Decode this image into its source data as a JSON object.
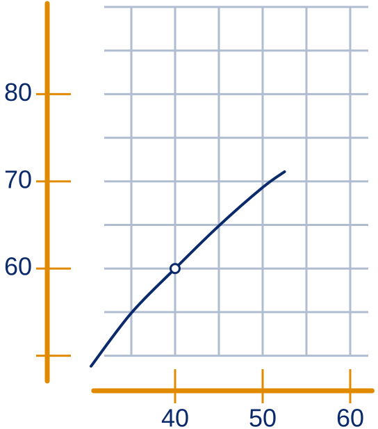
{
  "chart_data": {
    "type": "line",
    "series": [
      {
        "color": "#0b2a6b",
        "x": [
          30.4,
          35,
          40,
          45,
          50,
          52.5
        ],
        "values": [
          48.8,
          54.9,
          60,
          64.9,
          69.3,
          71.1
        ]
      }
    ],
    "highlight_point": {
      "x": 40,
      "y": 60
    },
    "xlim": [
      30.7,
      62.5
    ],
    "ylim": [
      47.1,
      90.4
    ],
    "xticks": [
      40,
      50,
      60
    ],
    "yticks": [
      {
        "value": 50,
        "label": null
      },
      60,
      70,
      80
    ],
    "grid": true,
    "xgrid": [
      35,
      40,
      45,
      50,
      55,
      60
    ],
    "ygrid": [
      50,
      55,
      60,
      65,
      70,
      75,
      80,
      85,
      90
    ],
    "axis_color": "#e08a00",
    "grid_color": "#b0bcd0"
  }
}
